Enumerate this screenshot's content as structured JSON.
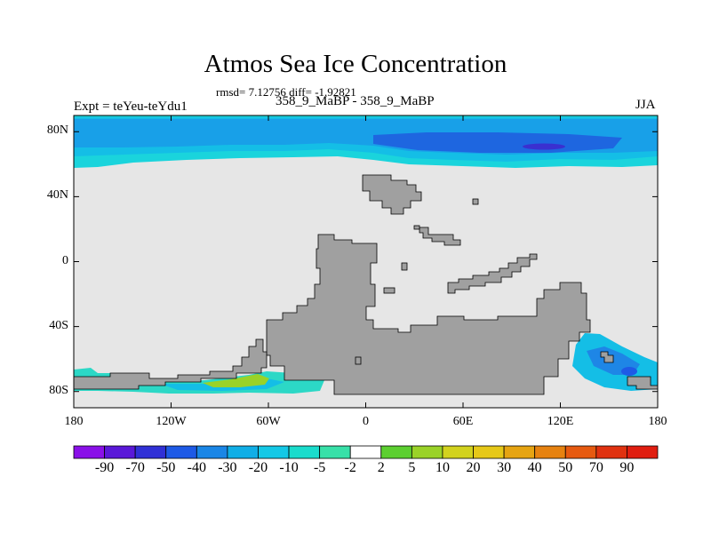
{
  "figure": {
    "title": "Atmos Sea Ice Concentration",
    "stats": "rmsd= 7.12756 diff= -1.92821",
    "subtitle": "358_9_MaBP - 358_9_MaBP",
    "experiment": "Expt = teYeu-teYdu1",
    "season": "JJA"
  },
  "map": {
    "projection": "cylindrical equidistant",
    "lon_range": [
      -180,
      180
    ],
    "lat_range": [
      -90,
      90
    ],
    "ocean_background_color": "#e6e6e6",
    "land_color": "#a0a0a0",
    "lat_ticks": [
      {
        "value": 80,
        "label": "80N"
      },
      {
        "value": 40,
        "label": "40N"
      },
      {
        "value": 0,
        "label": "0"
      },
      {
        "value": -40,
        "label": "40S"
      },
      {
        "value": -80,
        "label": "80S"
      }
    ],
    "lon_ticks": [
      {
        "value": -180,
        "label": "180"
      },
      {
        "value": -120,
        "label": "120W"
      },
      {
        "value": -60,
        "label": "60W"
      },
      {
        "value": 0,
        "label": "0"
      },
      {
        "value": 60,
        "label": "60E"
      },
      {
        "value": 120,
        "label": "120E"
      },
      {
        "value": 180,
        "label": "180"
      }
    ]
  },
  "colorbar": {
    "labels": [
      "-90",
      "-70",
      "-50",
      "-40",
      "-30",
      "-20",
      "-10",
      "-5",
      "-2",
      "2",
      "5",
      "10",
      "20",
      "30",
      "40",
      "50",
      "70",
      "90"
    ],
    "colors": [
      "#8a10e8",
      "#5a18d8",
      "#3030d6",
      "#1e5ae6",
      "#1a86e6",
      "#10aee6",
      "#14c8e6",
      "#1adccc",
      "#38e0a8",
      "#ffffff",
      "#5ccf30",
      "#9ad228",
      "#d2d21e",
      "#e6c818",
      "#e6a412",
      "#e68210",
      "#e65a10",
      "#e03210",
      "#e01e10"
    ]
  }
}
